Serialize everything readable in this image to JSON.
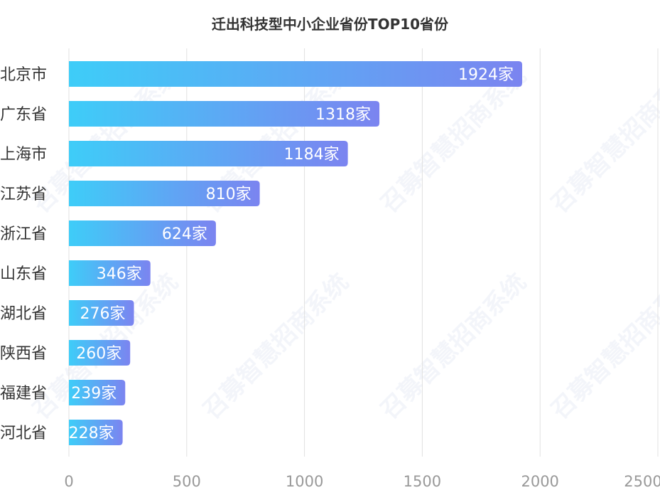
{
  "watermark": "召募智慧招商系统",
  "chart_data": {
    "type": "bar",
    "orientation": "horizontal",
    "title": "迁出科技型中小企业省份TOP10省份",
    "categories": [
      "北京市",
      "广东省",
      "上海市",
      "江苏省",
      "浙江省",
      "山东省",
      "湖北省",
      "陕西省",
      "福建省",
      "河北省"
    ],
    "values": [
      1924,
      1318,
      1184,
      810,
      624,
      346,
      276,
      260,
      239,
      228
    ],
    "value_suffix": "家",
    "xlim": [
      0,
      2500
    ],
    "xticks": [
      0,
      500,
      1000,
      1500,
      2000,
      2500
    ],
    "grid": true,
    "colors": {
      "gradient_start": "#3ecdf8",
      "gradient_end": "#7b84f0",
      "label": "#ffffff",
      "category": "#333333",
      "tick": "#999999",
      "grid": "#e0e0e0"
    }
  }
}
